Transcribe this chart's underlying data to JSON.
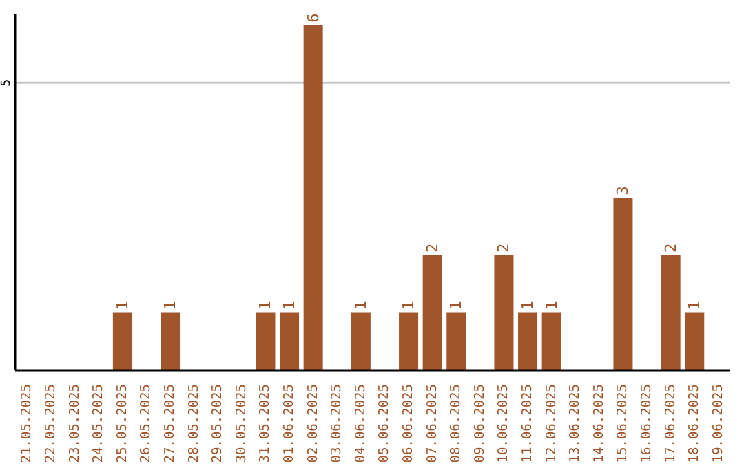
{
  "chart_data": {
    "type": "bar",
    "categories": [
      "21.05.2025",
      "22.05.2025",
      "23.05.2025",
      "24.05.2025",
      "25.05.2025",
      "26.05.2025",
      "27.05.2025",
      "28.05.2025",
      "29.05.2025",
      "30.05.2025",
      "31.05.2025",
      "01.06.2025",
      "02.06.2025",
      "03.06.2025",
      "04.06.2025",
      "05.06.2025",
      "06.06.2025",
      "07.06.2025",
      "08.06.2025",
      "09.06.2025",
      "10.06.2025",
      "11.06.2025",
      "12.06.2025",
      "13.06.2025",
      "14.06.2025",
      "15.06.2025",
      "16.06.2025",
      "17.06.2025",
      "18.06.2025",
      "19.06.2025"
    ],
    "values": [
      0,
      0,
      0,
      0,
      1,
      0,
      1,
      0,
      0,
      0,
      1,
      1,
      6,
      0,
      1,
      0,
      1,
      2,
      1,
      0,
      2,
      1,
      1,
      0,
      0,
      3,
      0,
      2,
      1,
      0
    ],
    "value_labels": [
      null,
      null,
      null,
      null,
      "1",
      null,
      "1",
      null,
      null,
      null,
      "1",
      "1",
      "6",
      null,
      "1",
      null,
      "1",
      "2",
      "1",
      null,
      "2",
      "1",
      "1",
      null,
      null,
      "3",
      null,
      "2",
      "1",
      null
    ],
    "color": "#a0562a",
    "ylim": [
      0,
      6.2
    ],
    "yticks": [
      5
    ],
    "grid": "y"
  }
}
